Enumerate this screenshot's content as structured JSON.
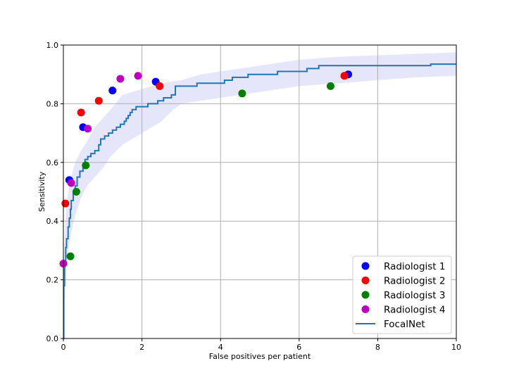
{
  "chart_data": {
    "type": "line",
    "title": "",
    "xlabel": "False positives per patient",
    "ylabel": "Sensitivity",
    "xlim": [
      0,
      10
    ],
    "ylim": [
      0,
      1.0
    ],
    "xticks": [
      "0",
      "2",
      "4",
      "6",
      "8",
      "10"
    ],
    "yticks": [
      "0.0",
      "0.2",
      "0.4",
      "0.6",
      "0.8",
      "1.0"
    ],
    "grid": true,
    "legend_position": "bottom-right",
    "series": [
      {
        "name": "Radiologist 1",
        "kind": "scatter",
        "color": "#0000ff",
        "points": [
          [
            0.15,
            0.54
          ],
          [
            0.5,
            0.72
          ],
          [
            1.25,
            0.845
          ],
          [
            2.35,
            0.875
          ],
          [
            7.25,
            0.9
          ]
        ]
      },
      {
        "name": "Radiologist 2",
        "kind": "scatter",
        "color": "#ff0000",
        "points": [
          [
            0.05,
            0.46
          ],
          [
            0.45,
            0.77
          ],
          [
            0.9,
            0.81
          ],
          [
            2.45,
            0.86
          ],
          [
            7.15,
            0.895
          ]
        ]
      },
      {
        "name": "Radiologist 3",
        "kind": "scatter",
        "color": "#008000",
        "points": [
          [
            0.18,
            0.28
          ],
          [
            0.33,
            0.5
          ],
          [
            0.57,
            0.59
          ],
          [
            4.55,
            0.835
          ],
          [
            6.8,
            0.86
          ]
        ]
      },
      {
        "name": "Radiologist 4",
        "kind": "scatter",
        "color": "#bf00bf",
        "points": [
          [
            0.0,
            0.255
          ],
          [
            0.2,
            0.53
          ],
          [
            0.62,
            0.715
          ],
          [
            1.45,
            0.885
          ],
          [
            1.9,
            0.895
          ]
        ]
      },
      {
        "name": "FocalNet",
        "kind": "step",
        "color": "#1f77b4",
        "points": [
          [
            0,
            0
          ],
          [
            0.01,
            0.18
          ],
          [
            0.03,
            0.26
          ],
          [
            0.06,
            0.31
          ],
          [
            0.08,
            0.34
          ],
          [
            0.12,
            0.38
          ],
          [
            0.15,
            0.41
          ],
          [
            0.18,
            0.44
          ],
          [
            0.2,
            0.47
          ],
          [
            0.25,
            0.5
          ],
          [
            0.3,
            0.52
          ],
          [
            0.35,
            0.55
          ],
          [
            0.42,
            0.57
          ],
          [
            0.5,
            0.59
          ],
          [
            0.55,
            0.61
          ],
          [
            0.62,
            0.62
          ],
          [
            0.7,
            0.63
          ],
          [
            0.8,
            0.64
          ],
          [
            0.9,
            0.66
          ],
          [
            0.95,
            0.68
          ],
          [
            1.05,
            0.69
          ],
          [
            1.15,
            0.7
          ],
          [
            1.25,
            0.71
          ],
          [
            1.35,
            0.72
          ],
          [
            1.45,
            0.73
          ],
          [
            1.55,
            0.74
          ],
          [
            1.6,
            0.75
          ],
          [
            1.65,
            0.76
          ],
          [
            1.7,
            0.77
          ],
          [
            1.75,
            0.78
          ],
          [
            1.85,
            0.79
          ],
          [
            2.0,
            0.79
          ],
          [
            2.15,
            0.8
          ],
          [
            2.3,
            0.8
          ],
          [
            2.4,
            0.81
          ],
          [
            2.55,
            0.82
          ],
          [
            2.75,
            0.83
          ],
          [
            2.85,
            0.86
          ],
          [
            3.3,
            0.86
          ],
          [
            3.4,
            0.87
          ],
          [
            4.0,
            0.87
          ],
          [
            4.1,
            0.88
          ],
          [
            4.3,
            0.89
          ],
          [
            4.6,
            0.89
          ],
          [
            4.7,
            0.9
          ],
          [
            5.4,
            0.9
          ],
          [
            5.45,
            0.91
          ],
          [
            6.1,
            0.91
          ],
          [
            6.2,
            0.92
          ],
          [
            6.5,
            0.93
          ],
          [
            9.3,
            0.93
          ],
          [
            9.35,
            0.935
          ],
          [
            10,
            0.935
          ]
        ]
      }
    ],
    "confidence_band": {
      "series": "FocalNet",
      "color": "#e6e6fa",
      "upper": [
        [
          0,
          0.24
        ],
        [
          0.05,
          0.4
        ],
        [
          0.1,
          0.48
        ],
        [
          0.2,
          0.55
        ],
        [
          0.3,
          0.6
        ],
        [
          0.45,
          0.64
        ],
        [
          0.6,
          0.67
        ],
        [
          0.8,
          0.72
        ],
        [
          1.0,
          0.75
        ],
        [
          1.2,
          0.78
        ],
        [
          1.5,
          0.83
        ],
        [
          2.0,
          0.85
        ],
        [
          2.5,
          0.87
        ],
        [
          3.0,
          0.88
        ],
        [
          3.5,
          0.9
        ],
        [
          4.0,
          0.91
        ],
        [
          5.0,
          0.93
        ],
        [
          6.0,
          0.95
        ],
        [
          7.0,
          0.96
        ],
        [
          8.0,
          0.965
        ],
        [
          9.0,
          0.97
        ],
        [
          10,
          0.975
        ]
      ],
      "lower": [
        [
          0,
          0.0
        ],
        [
          0.05,
          0.22
        ],
        [
          0.1,
          0.28
        ],
        [
          0.2,
          0.36
        ],
        [
          0.3,
          0.42
        ],
        [
          0.45,
          0.48
        ],
        [
          0.6,
          0.52
        ],
        [
          0.8,
          0.55
        ],
        [
          1.0,
          0.58
        ],
        [
          1.2,
          0.62
        ],
        [
          1.5,
          0.66
        ],
        [
          2.0,
          0.7
        ],
        [
          2.5,
          0.74
        ],
        [
          2.8,
          0.78
        ],
        [
          3.0,
          0.8
        ],
        [
          4.0,
          0.82
        ],
        [
          5.0,
          0.84
        ],
        [
          6.0,
          0.86
        ],
        [
          7.0,
          0.87
        ],
        [
          8.0,
          0.88
        ],
        [
          9.0,
          0.89
        ],
        [
          10,
          0.895
        ]
      ]
    }
  }
}
